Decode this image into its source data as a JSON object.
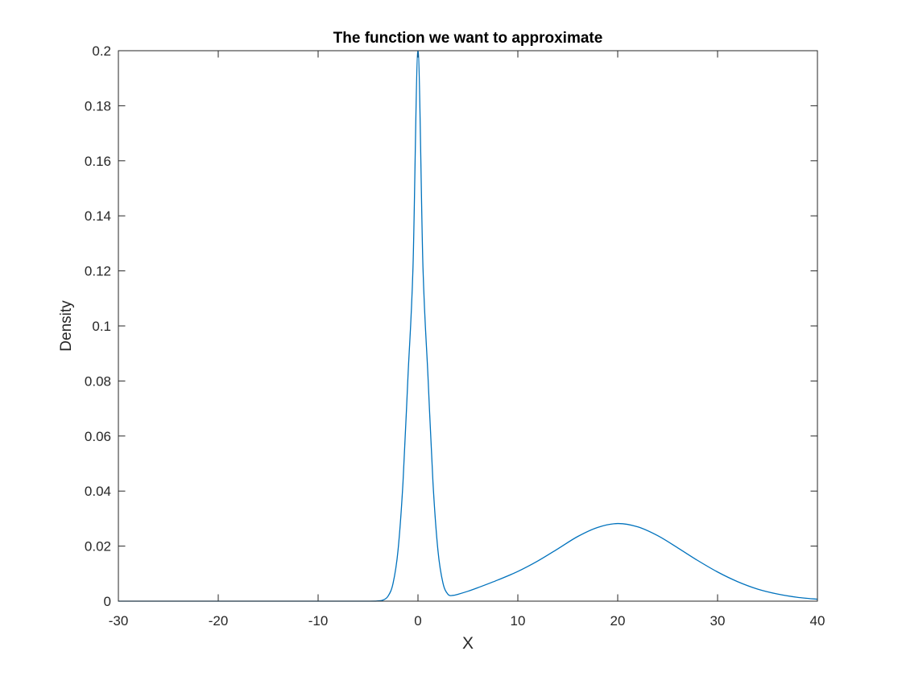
{
  "chart_data": {
    "type": "line",
    "title": "The function we want to approximate",
    "xlabel": "X",
    "ylabel": "Density",
    "xlim": [
      -30,
      40
    ],
    "ylim": [
      0,
      0.2
    ],
    "xticks": [
      -30,
      -20,
      -10,
      0,
      10,
      20,
      30,
      40
    ],
    "xtick_labels": [
      "-30",
      "-20",
      "-10",
      "0",
      "10",
      "20",
      "30",
      "40"
    ],
    "yticks": [
      0,
      0.02,
      0.04,
      0.06,
      0.08,
      0.1,
      0.12,
      0.14,
      0.16,
      0.18,
      0.2
    ],
    "ytick_labels": [
      "0",
      "0.02",
      "0.04",
      "0.06",
      "0.08",
      "0.1",
      "0.12",
      "0.14",
      "0.16",
      "0.18",
      "0.2"
    ],
    "grid": false,
    "box": true,
    "line_color": "#0072BD",
    "series": [
      {
        "x": [
          -30,
          -20,
          -10,
          -5,
          -4,
          -3.5,
          -3,
          -2.5,
          -2,
          -1.5,
          -1,
          -0.5,
          0,
          0.5,
          1,
          1.5,
          2,
          2.5,
          3,
          3.5,
          4,
          5,
          6,
          8,
          10,
          12,
          14,
          16,
          18,
          20,
          22,
          24,
          26,
          28,
          30,
          32,
          34,
          36,
          38,
          40
        ],
        "y": [
          0,
          0,
          0,
          0,
          0.0001,
          0.0004,
          0.0018,
          0.0064,
          0.0184,
          0.0432,
          0.0818,
          0.1212,
          0.2,
          0.1212,
          0.0818,
          0.0432,
          0.0184,
          0.0066,
          0.0025,
          0.0021,
          0.0025,
          0.0036,
          0.0049,
          0.0077,
          0.0108,
          0.0146,
          0.019,
          0.0235,
          0.0268,
          0.0282,
          0.027,
          0.0238,
          0.0194,
          0.0148,
          0.0106,
          0.0071,
          0.0044,
          0.0026,
          0.0014,
          0.0007
        ]
      }
    ]
  }
}
